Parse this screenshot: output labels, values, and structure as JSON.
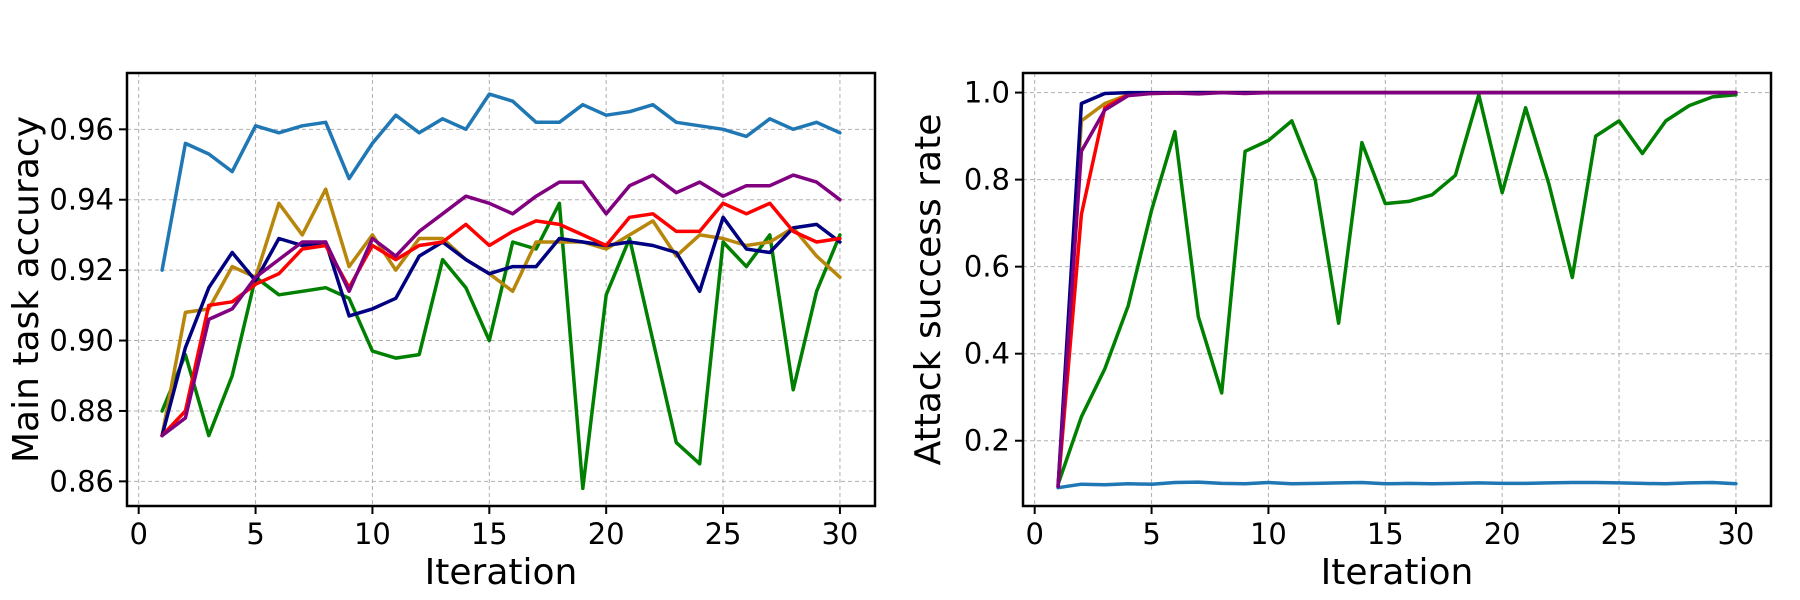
{
  "chart_data": [
    {
      "type": "line",
      "title": "",
      "xlabel": "Iteration",
      "ylabel": "Main task accuracy",
      "xlim": [
        -0.5,
        31.5
      ],
      "ylim": [
        0.853,
        0.976
      ],
      "xticks": [
        0,
        5,
        10,
        15,
        20,
        25,
        30
      ],
      "xtick_labels": [
        "0",
        "5",
        "10",
        "15",
        "20",
        "25",
        "30"
      ],
      "yticks": [
        0.86,
        0.88,
        0.9,
        0.92,
        0.94,
        0.96
      ],
      "ytick_labels": [
        "0.86",
        "0.88",
        "0.90",
        "0.92",
        "0.94",
        "0.96"
      ],
      "grid": true,
      "x": [
        1,
        2,
        3,
        4,
        5,
        6,
        7,
        8,
        9,
        10,
        11,
        12,
        13,
        14,
        15,
        16,
        17,
        18,
        19,
        20,
        21,
        22,
        23,
        24,
        25,
        26,
        27,
        28,
        29,
        30
      ],
      "series": [
        {
          "name": "blue",
          "color": "#1f77b4",
          "values": [
            0.92,
            0.956,
            0.953,
            0.948,
            0.961,
            0.959,
            0.961,
            0.962,
            0.946,
            0.956,
            0.964,
            0.959,
            0.963,
            0.96,
            0.97,
            0.968,
            0.962,
            0.962,
            0.967,
            0.964,
            0.965,
            0.967,
            0.962,
            0.961,
            0.96,
            0.958,
            0.963,
            0.96,
            0.962,
            0.959
          ]
        },
        {
          "name": "green",
          "color": "#008000",
          "values": [
            0.88,
            0.896,
            0.873,
            0.89,
            0.918,
            0.913,
            0.914,
            0.915,
            0.912,
            0.897,
            0.895,
            0.896,
            0.923,
            0.915,
            0.9,
            0.928,
            0.926,
            0.939,
            0.858,
            0.913,
            0.929,
            0.9,
            0.871,
            0.865,
            0.928,
            0.921,
            0.93,
            0.886,
            0.914,
            0.93
          ]
        },
        {
          "name": "goldenrod",
          "color": "#b8860b",
          "values": [
            0.873,
            0.908,
            0.909,
            0.921,
            0.918,
            0.939,
            0.93,
            0.943,
            0.921,
            0.93,
            0.92,
            0.929,
            0.929,
            0.923,
            0.919,
            0.914,
            0.928,
            0.928,
            0.928,
            0.926,
            0.93,
            0.934,
            0.924,
            0.93,
            0.929,
            0.927,
            0.928,
            0.932,
            0.924,
            0.918
          ]
        },
        {
          "name": "navy",
          "color": "#000080",
          "values": [
            0.873,
            0.898,
            0.915,
            0.925,
            0.917,
            0.929,
            0.927,
            0.928,
            0.907,
            0.909,
            0.912,
            0.924,
            0.928,
            0.923,
            0.919,
            0.921,
            0.921,
            0.929,
            0.928,
            0.927,
            0.928,
            0.927,
            0.925,
            0.914,
            0.935,
            0.926,
            0.925,
            0.932,
            0.933,
            0.928
          ]
        },
        {
          "name": "red",
          "color": "#ff0000",
          "values": [
            0.873,
            0.88,
            0.91,
            0.911,
            0.916,
            0.919,
            0.926,
            0.927,
            0.915,
            0.927,
            0.923,
            0.927,
            0.928,
            0.933,
            0.927,
            0.931,
            0.934,
            0.933,
            0.93,
            0.927,
            0.935,
            0.936,
            0.931,
            0.931,
            0.939,
            0.936,
            0.939,
            0.931,
            0.928,
            0.929
          ]
        },
        {
          "name": "purple",
          "color": "#800080",
          "values": [
            0.873,
            0.878,
            0.906,
            0.909,
            0.918,
            0.923,
            0.928,
            0.928,
            0.914,
            0.929,
            0.924,
            0.931,
            0.936,
            0.941,
            0.939,
            0.936,
            0.941,
            0.945,
            0.945,
            0.936,
            0.944,
            0.947,
            0.942,
            0.945,
            0.941,
            0.944,
            0.944,
            0.947,
            0.945,
            0.94
          ]
        }
      ]
    },
    {
      "type": "line",
      "title": "",
      "xlabel": "Iteration",
      "ylabel": "Attack success rate",
      "xlim": [
        -0.5,
        31.5
      ],
      "ylim": [
        0.05,
        1.045
      ],
      "xticks": [
        0,
        5,
        10,
        15,
        20,
        25,
        30
      ],
      "xtick_labels": [
        "0",
        "5",
        "10",
        "15",
        "20",
        "25",
        "30"
      ],
      "yticks": [
        0.2,
        0.4,
        0.6,
        0.8,
        1.0
      ],
      "ytick_labels": [
        "0.2",
        "0.4",
        "0.6",
        "0.8",
        "1.0"
      ],
      "grid": true,
      "x": [
        1,
        2,
        3,
        4,
        5,
        6,
        7,
        8,
        9,
        10,
        11,
        12,
        13,
        14,
        15,
        16,
        17,
        18,
        19,
        20,
        21,
        22,
        23,
        24,
        25,
        26,
        27,
        28,
        29,
        30
      ],
      "series": [
        {
          "name": "blue",
          "color": "#1f77b4",
          "values": [
            0.092,
            0.1,
            0.099,
            0.101,
            0.1,
            0.104,
            0.105,
            0.102,
            0.101,
            0.104,
            0.101,
            0.102,
            0.103,
            0.104,
            0.101,
            0.102,
            0.101,
            0.102,
            0.103,
            0.102,
            0.102,
            0.103,
            0.104,
            0.104,
            0.103,
            0.102,
            0.101,
            0.103,
            0.104,
            0.101
          ]
        },
        {
          "name": "green",
          "color": "#008000",
          "values": [
            0.1,
            0.255,
            0.365,
            0.51,
            0.73,
            0.91,
            0.485,
            0.31,
            0.865,
            0.89,
            0.935,
            0.8,
            0.47,
            0.885,
            0.745,
            0.75,
            0.765,
            0.81,
            0.995,
            0.77,
            0.965,
            0.79,
            0.575,
            0.9,
            0.935,
            0.86,
            0.935,
            0.97,
            0.99,
            0.995
          ]
        },
        {
          "name": "goldenrod",
          "color": "#b8860b",
          "values": [
            0.095,
            0.935,
            0.975,
            0.995,
            0.998,
            0.999,
            1.0,
            1.0,
            1.0,
            1.0,
            1.0,
            1.0,
            1.0,
            1.0,
            1.0,
            1.0,
            1.0,
            1.0,
            1.0,
            1.0,
            1.0,
            1.0,
            1.0,
            1.0,
            1.0,
            1.0,
            1.0,
            1.0,
            1.0,
            1.0
          ]
        },
        {
          "name": "red",
          "color": "#ff0000",
          "values": [
            0.095,
            0.72,
            0.965,
            0.995,
            0.999,
            1.0,
            1.0,
            1.0,
            1.0,
            1.0,
            1.0,
            1.0,
            1.0,
            1.0,
            1.0,
            1.0,
            1.0,
            1.0,
            1.0,
            1.0,
            1.0,
            1.0,
            1.0,
            1.0,
            1.0,
            1.0,
            1.0,
            1.0,
            1.0,
            1.0
          ]
        },
        {
          "name": "navy",
          "color": "#000080",
          "values": [
            0.095,
            0.975,
            0.998,
            1.0,
            1.0,
            1.0,
            1.0,
            1.0,
            1.0,
            1.0,
            1.0,
            1.0,
            1.0,
            1.0,
            1.0,
            1.0,
            1.0,
            1.0,
            1.0,
            1.0,
            1.0,
            1.0,
            1.0,
            1.0,
            1.0,
            1.0,
            1.0,
            1.0,
            1.0,
            1.0
          ]
        },
        {
          "name": "purple",
          "color": "#800080",
          "values": [
            0.095,
            0.865,
            0.96,
            0.993,
            0.998,
            0.999,
            0.997,
            1.0,
            0.998,
            1.0,
            1.0,
            1.0,
            1.0,
            1.0,
            1.0,
            1.0,
            1.0,
            1.0,
            1.0,
            1.0,
            1.0,
            1.0,
            1.0,
            1.0,
            1.0,
            1.0,
            1.0,
            1.0,
            1.0,
            1.0
          ]
        }
      ]
    }
  ]
}
